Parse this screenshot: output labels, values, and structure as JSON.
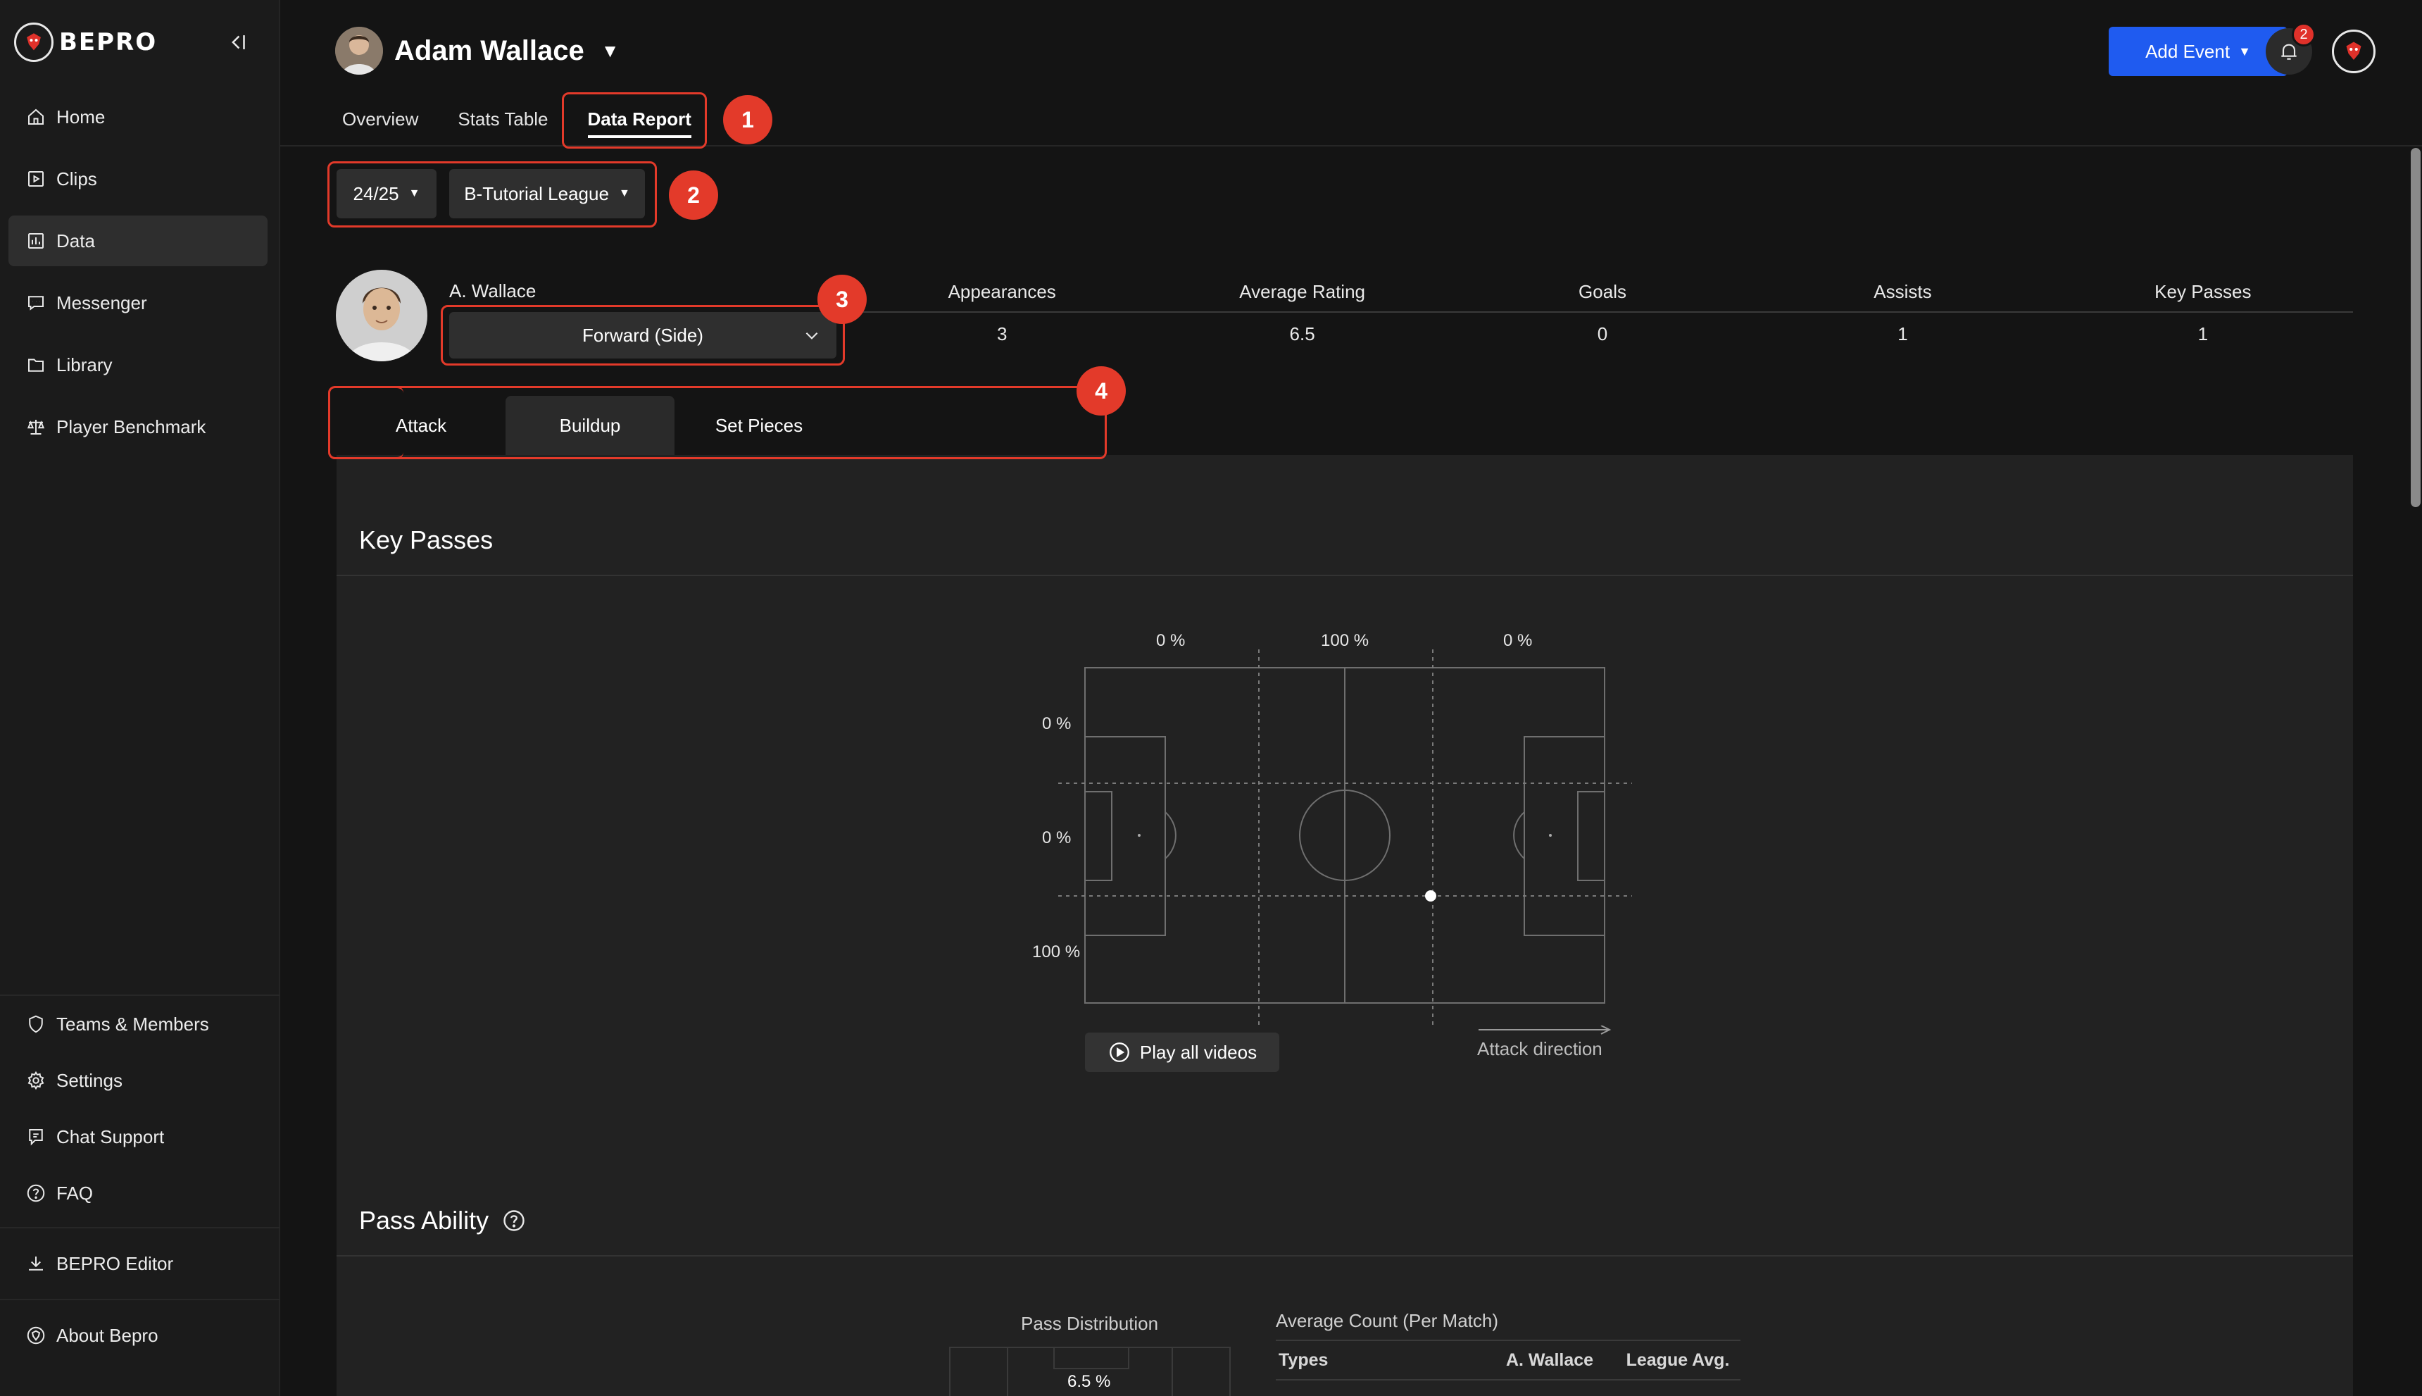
{
  "app": {
    "brand": "BEPRO"
  },
  "sidebar": {
    "items": [
      {
        "label": "Home",
        "icon": "home-icon"
      },
      {
        "label": "Clips",
        "icon": "clips-icon"
      },
      {
        "label": "Data",
        "icon": "data-icon",
        "active": true
      },
      {
        "label": "Messenger",
        "icon": "messenger-icon"
      },
      {
        "label": "Library",
        "icon": "library-icon"
      },
      {
        "label": "Player Benchmark",
        "icon": "benchmark-icon"
      }
    ],
    "bottom_items": [
      {
        "label": "Teams & Members",
        "icon": "shield-icon"
      },
      {
        "label": "Settings",
        "icon": "gear-icon"
      },
      {
        "label": "Chat Support",
        "icon": "chat-icon"
      },
      {
        "label": "FAQ",
        "icon": "question-icon"
      }
    ],
    "editor": {
      "label": "BEPRO Editor",
      "icon": "download-icon"
    },
    "about": {
      "label": "About Bepro",
      "icon": "bepro-icon"
    }
  },
  "header": {
    "player_name": "Adam Wallace",
    "tabs": [
      {
        "label": "Overview"
      },
      {
        "label": "Stats Table"
      },
      {
        "label": "Data Report",
        "active": true
      }
    ],
    "add_event_label": "Add Event",
    "notification_count": "2",
    "accent_color": "#1f5bf0"
  },
  "annotations": [
    "1",
    "2",
    "3",
    "4"
  ],
  "filters": {
    "season": "24/25",
    "league": "B-Tutorial League"
  },
  "player": {
    "short_name": "A. Wallace",
    "position": "Forward (Side)"
  },
  "stats": {
    "headers": [
      "Appearances",
      "Average Rating",
      "Goals",
      "Assists",
      "Key Passes"
    ],
    "values": [
      "3",
      "6.5",
      "0",
      "1",
      "1"
    ]
  },
  "subtabs": [
    {
      "label": "Attack"
    },
    {
      "label": "Buildup",
      "active": true
    },
    {
      "label": "Set Pieces"
    }
  ],
  "key_passes": {
    "title": "Key Passes",
    "zones_top": [
      "0 %",
      "100 %",
      "0 %"
    ],
    "zones_left": [
      "0 %",
      "0 %",
      "100 %"
    ],
    "play_all_label": "Play all videos",
    "attack_direction_label": "Attack direction"
  },
  "pass_ability": {
    "title": "Pass Ability",
    "distribution_title": "Pass Distribution",
    "distribution_value": "6.5 %",
    "avg_title": "Average Count (Per Match)",
    "columns": [
      "Types",
      "A. Wallace",
      "League Avg."
    ]
  }
}
